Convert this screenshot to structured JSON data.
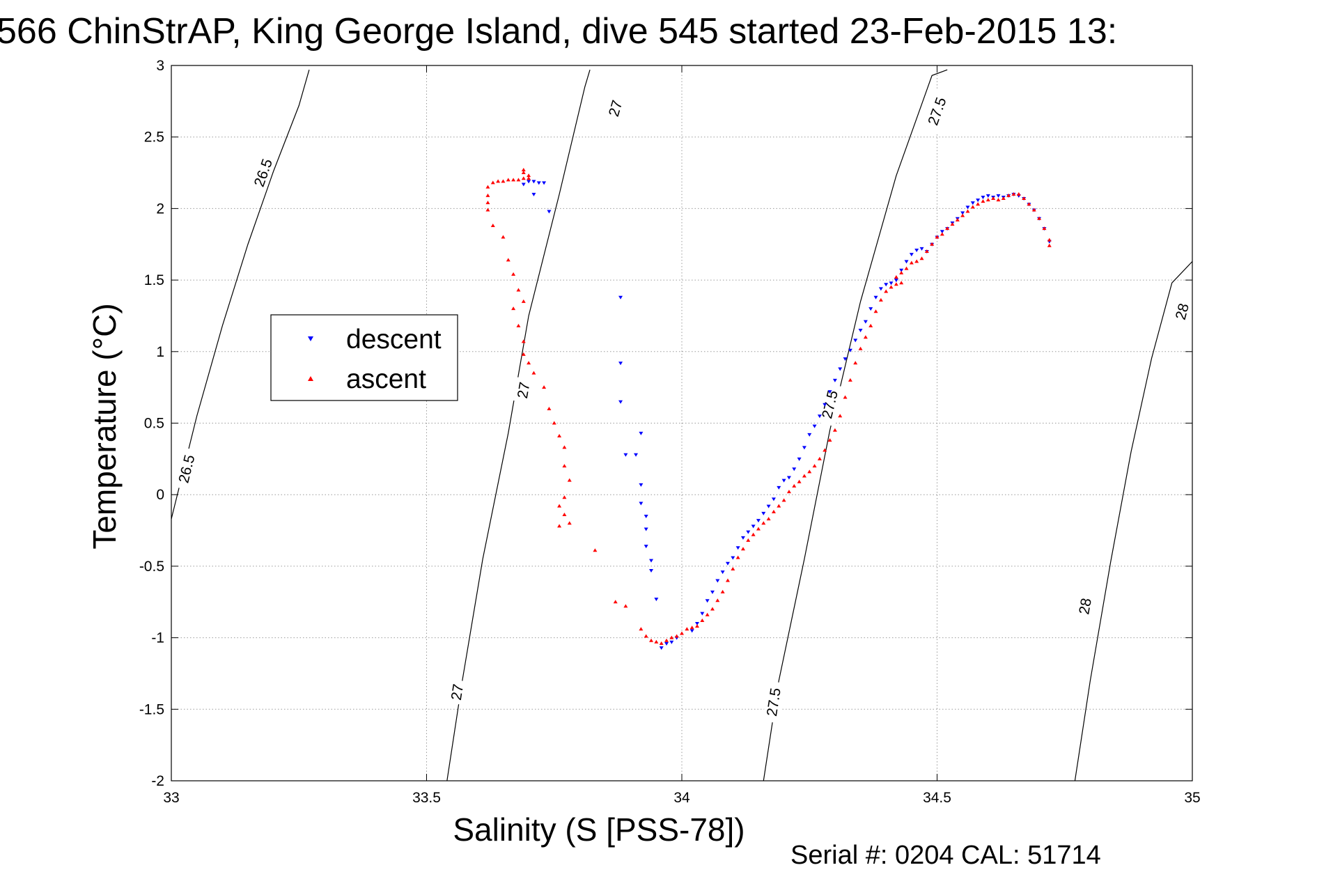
{
  "chart_data": {
    "type": "scatter",
    "title": "566 ChinStrAP, King George Island, dive 545 started 23-Feb-2015 13:",
    "xlabel": "Salinity (S [PSS-78])",
    "ylabel": "Temperature (°C)",
    "xlim": [
      33,
      35
    ],
    "ylim": [
      -2,
      3
    ],
    "x_ticks": [
      "33",
      "33.5",
      "34",
      "34.5",
      "35"
    ],
    "y_ticks": [
      "3",
      "2.5",
      "2",
      "1.5",
      "1",
      "0.5",
      "0",
      "-0.5",
      "-1",
      "-1.5",
      "-2"
    ],
    "grid": "on (dotted)",
    "legend_position": "left",
    "footer": "Serial #: 0204  CAL: 51714",
    "series": [
      {
        "name": "descent",
        "marker": "down-triangle",
        "color": "#0000ff",
        "points": [
          [
            33.7,
            2.19
          ],
          [
            33.71,
            2.19
          ],
          [
            33.72,
            2.18
          ],
          [
            33.73,
            2.18
          ],
          [
            33.74,
            1.98
          ],
          [
            33.71,
            2.1
          ],
          [
            33.69,
            2.17
          ],
          [
            33.88,
            1.38
          ],
          [
            33.88,
            0.92
          ],
          [
            33.88,
            0.65
          ],
          [
            33.92,
            0.43
          ],
          [
            33.89,
            0.28
          ],
          [
            33.91,
            0.28
          ],
          [
            33.92,
            0.07
          ],
          [
            33.92,
            -0.06
          ],
          [
            33.93,
            -0.15
          ],
          [
            33.93,
            -0.24
          ],
          [
            33.93,
            -0.36
          ],
          [
            33.94,
            -0.46
          ],
          [
            33.94,
            -0.53
          ],
          [
            33.95,
            -0.73
          ],
          [
            33.96,
            -1.07
          ],
          [
            33.97,
            -1.04
          ],
          [
            33.98,
            -1.03
          ],
          [
            33.99,
            -1.0
          ],
          [
            34.02,
            -0.95
          ],
          [
            34.03,
            -0.9
          ],
          [
            34.04,
            -0.83
          ],
          [
            34.05,
            -0.74
          ],
          [
            34.06,
            -0.68
          ],
          [
            34.07,
            -0.6
          ],
          [
            34.08,
            -0.54
          ],
          [
            34.09,
            -0.48
          ],
          [
            34.1,
            -0.44
          ],
          [
            34.11,
            -0.37
          ],
          [
            34.12,
            -0.3
          ],
          [
            34.13,
            -0.26
          ],
          [
            34.14,
            -0.22
          ],
          [
            34.15,
            -0.18
          ],
          [
            34.16,
            -0.13
          ],
          [
            34.17,
            -0.08
          ],
          [
            34.18,
            -0.03
          ],
          [
            34.19,
            0.05
          ],
          [
            34.2,
            0.1
          ],
          [
            34.21,
            0.12
          ],
          [
            34.22,
            0.18
          ],
          [
            34.23,
            0.25
          ],
          [
            34.24,
            0.33
          ],
          [
            34.25,
            0.42
          ],
          [
            34.26,
            0.48
          ],
          [
            34.27,
            0.55
          ],
          [
            34.28,
            0.63
          ],
          [
            34.29,
            0.72
          ],
          [
            34.3,
            0.8
          ],
          [
            34.31,
            0.88
          ],
          [
            34.32,
            0.95
          ],
          [
            34.33,
            1.01
          ],
          [
            34.34,
            1.08
          ],
          [
            34.35,
            1.15
          ],
          [
            34.36,
            1.21
          ],
          [
            34.37,
            1.3
          ],
          [
            34.38,
            1.38
          ],
          [
            34.39,
            1.44
          ],
          [
            34.4,
            1.47
          ],
          [
            34.41,
            1.48
          ],
          [
            34.42,
            1.5
          ],
          [
            34.43,
            1.57
          ],
          [
            34.44,
            1.63
          ],
          [
            34.45,
            1.68
          ],
          [
            34.46,
            1.71
          ],
          [
            34.47,
            1.72
          ],
          [
            34.48,
            1.7
          ],
          [
            34.49,
            1.75
          ],
          [
            34.5,
            1.8
          ],
          [
            34.51,
            1.84
          ],
          [
            34.52,
            1.86
          ],
          [
            34.53,
            1.9
          ],
          [
            34.54,
            1.93
          ],
          [
            34.55,
            1.97
          ],
          [
            34.56,
            2.01
          ],
          [
            34.57,
            2.04
          ],
          [
            34.58,
            2.06
          ],
          [
            34.59,
            2.08
          ],
          [
            34.6,
            2.09
          ],
          [
            34.61,
            2.08
          ],
          [
            34.62,
            2.09
          ],
          [
            34.63,
            2.08
          ],
          [
            34.64,
            2.09
          ],
          [
            34.65,
            2.1
          ],
          [
            34.66,
            2.09
          ],
          [
            34.67,
            2.07
          ],
          [
            34.68,
            2.03
          ],
          [
            34.69,
            1.99
          ],
          [
            34.7,
            1.93
          ],
          [
            34.71,
            1.86
          ],
          [
            34.72,
            1.77
          ]
        ]
      },
      {
        "name": "ascent",
        "marker": "up-triangle",
        "color": "#ff0000",
        "points": [
          [
            33.69,
            2.27
          ],
          [
            33.69,
            2.25
          ],
          [
            33.7,
            2.23
          ],
          [
            33.7,
            2.21
          ],
          [
            33.69,
            2.21
          ],
          [
            33.68,
            2.2
          ],
          [
            33.67,
            2.2
          ],
          [
            33.66,
            2.2
          ],
          [
            33.65,
            2.19
          ],
          [
            33.64,
            2.19
          ],
          [
            33.63,
            2.18
          ],
          [
            33.62,
            2.15
          ],
          [
            33.62,
            2.09
          ],
          [
            33.62,
            2.04
          ],
          [
            33.62,
            1.99
          ],
          [
            33.63,
            1.88
          ],
          [
            33.65,
            1.8
          ],
          [
            33.66,
            1.64
          ],
          [
            33.67,
            1.54
          ],
          [
            33.68,
            1.43
          ],
          [
            33.69,
            1.35
          ],
          [
            33.67,
            1.3
          ],
          [
            33.68,
            1.18
          ],
          [
            33.69,
            1.07
          ],
          [
            33.69,
            0.98
          ],
          [
            33.7,
            0.92
          ],
          [
            33.71,
            0.85
          ],
          [
            33.73,
            0.75
          ],
          [
            33.74,
            0.6
          ],
          [
            33.75,
            0.5
          ],
          [
            33.76,
            0.41
          ],
          [
            33.77,
            0.33
          ],
          [
            33.77,
            0.2
          ],
          [
            33.78,
            0.1
          ],
          [
            33.77,
            -0.02
          ],
          [
            33.76,
            -0.08
          ],
          [
            33.77,
            -0.14
          ],
          [
            33.78,
            -0.2
          ],
          [
            33.76,
            -0.22
          ],
          [
            33.83,
            -0.39
          ],
          [
            33.87,
            -0.75
          ],
          [
            33.89,
            -0.78
          ],
          [
            33.92,
            -0.94
          ],
          [
            33.93,
            -0.99
          ],
          [
            33.94,
            -1.02
          ],
          [
            33.95,
            -1.03
          ],
          [
            33.96,
            -1.04
          ],
          [
            33.97,
            -1.02
          ],
          [
            33.98,
            -1.0
          ],
          [
            33.99,
            -0.99
          ],
          [
            34.0,
            -0.97
          ],
          [
            34.01,
            -0.94
          ],
          [
            34.02,
            -0.93
          ],
          [
            34.03,
            -0.92
          ],
          [
            34.04,
            -0.88
          ],
          [
            34.05,
            -0.84
          ],
          [
            34.06,
            -0.8
          ],
          [
            34.07,
            -0.74
          ],
          [
            34.08,
            -0.68
          ],
          [
            34.09,
            -0.6
          ],
          [
            34.1,
            -0.52
          ],
          [
            34.11,
            -0.44
          ],
          [
            34.12,
            -0.38
          ],
          [
            34.13,
            -0.32
          ],
          [
            34.14,
            -0.28
          ],
          [
            34.15,
            -0.24
          ],
          [
            34.16,
            -0.2
          ],
          [
            34.17,
            -0.17
          ],
          [
            34.18,
            -0.12
          ],
          [
            34.19,
            -0.08
          ],
          [
            34.2,
            -0.04
          ],
          [
            34.21,
            0.02
          ],
          [
            34.22,
            0.06
          ],
          [
            34.23,
            0.09
          ],
          [
            34.24,
            0.13
          ],
          [
            34.25,
            0.16
          ],
          [
            34.26,
            0.2
          ],
          [
            34.27,
            0.25
          ],
          [
            34.28,
            0.31
          ],
          [
            34.29,
            0.38
          ],
          [
            34.3,
            0.45
          ],
          [
            34.31,
            0.55
          ],
          [
            34.32,
            0.68
          ],
          [
            34.33,
            0.8
          ],
          [
            34.34,
            0.92
          ],
          [
            34.35,
            1.02
          ],
          [
            34.36,
            1.1
          ],
          [
            34.37,
            1.18
          ],
          [
            34.38,
            1.28
          ],
          [
            34.39,
            1.36
          ],
          [
            34.4,
            1.42
          ],
          [
            34.41,
            1.45
          ],
          [
            34.42,
            1.47
          ],
          [
            34.43,
            1.48
          ],
          [
            34.42,
            1.52
          ],
          [
            34.43,
            1.55
          ],
          [
            34.44,
            1.58
          ],
          [
            34.45,
            1.62
          ],
          [
            34.46,
            1.63
          ],
          [
            34.47,
            1.65
          ],
          [
            34.48,
            1.7
          ],
          [
            34.49,
            1.75
          ],
          [
            34.5,
            1.8
          ],
          [
            34.51,
            1.82
          ],
          [
            34.52,
            1.86
          ],
          [
            34.53,
            1.89
          ],
          [
            34.54,
            1.92
          ],
          [
            34.55,
            1.95
          ],
          [
            34.56,
            1.98
          ],
          [
            34.57,
            2.01
          ],
          [
            34.58,
            2.03
          ],
          [
            34.59,
            2.05
          ],
          [
            34.6,
            2.06
          ],
          [
            34.61,
            2.07
          ],
          [
            34.62,
            2.06
          ],
          [
            34.63,
            2.07
          ],
          [
            34.64,
            2.09
          ],
          [
            34.65,
            2.1
          ],
          [
            34.66,
            2.1
          ],
          [
            34.67,
            2.07
          ],
          [
            34.68,
            2.03
          ],
          [
            34.69,
            1.99
          ],
          [
            34.7,
            1.93
          ],
          [
            34.71,
            1.86
          ],
          [
            34.72,
            1.78
          ],
          [
            34.72,
            1.74
          ]
        ]
      }
    ],
    "density_contours": [
      {
        "level": "26.5",
        "points": [
          [
            33.0,
            -0.17
          ],
          [
            33.05,
            0.55
          ],
          [
            33.1,
            1.18
          ],
          [
            33.15,
            1.75
          ],
          [
            33.2,
            2.26
          ],
          [
            33.25,
            2.72
          ],
          [
            33.27,
            2.97
          ]
        ],
        "labels": [
          {
            "text": "26.5",
            "at": [
              33.03,
              0.18
            ]
          },
          {
            "text": "26.5",
            "at": [
              33.18,
              2.25
            ]
          }
        ]
      },
      {
        "level": "27",
        "points": [
          [
            33.54,
            -2.0
          ],
          [
            33.57,
            -1.3
          ],
          [
            33.61,
            -0.45
          ],
          [
            33.66,
            0.43
          ],
          [
            33.7,
            1.25
          ],
          [
            33.76,
            2.1
          ],
          [
            33.81,
            2.85
          ],
          [
            33.82,
            2.97
          ]
        ],
        "labels": [
          {
            "text": "27",
            "at": [
              33.56,
              -1.38
            ]
          },
          {
            "text": "27",
            "at": [
              33.69,
              0.73
            ]
          },
          {
            "text": "27",
            "at": [
              33.87,
              2.7
            ]
          }
        ]
      },
      {
        "level": "27.5",
        "points": [
          [
            34.16,
            -2.0
          ],
          [
            34.19,
            -1.3
          ],
          [
            34.24,
            -0.45
          ],
          [
            34.29,
            0.45
          ],
          [
            34.35,
            1.35
          ],
          [
            34.42,
            2.23
          ],
          [
            34.49,
            2.93
          ],
          [
            34.52,
            2.97
          ]
        ],
        "labels": [
          {
            "text": "27.5",
            "at": [
              34.18,
              -1.45
            ]
          },
          {
            "text": "27.5",
            "at": [
              34.29,
              0.63
            ]
          },
          {
            "text": "27.5",
            "at": [
              34.5,
              2.68
            ]
          }
        ]
      },
      {
        "level": "28",
        "points": [
          [
            34.77,
            -2.0
          ],
          [
            34.8,
            -1.3
          ],
          [
            34.84,
            -0.47
          ],
          [
            34.88,
            0.3
          ],
          [
            34.92,
            0.95
          ],
          [
            34.96,
            1.48
          ],
          [
            35.0,
            1.63
          ]
        ],
        "labels": [
          {
            "text": "28",
            "at": [
              34.79,
              -0.78
            ]
          },
          {
            "text": "28",
            "at": [
              34.98,
              1.28
            ]
          }
        ]
      }
    ]
  }
}
